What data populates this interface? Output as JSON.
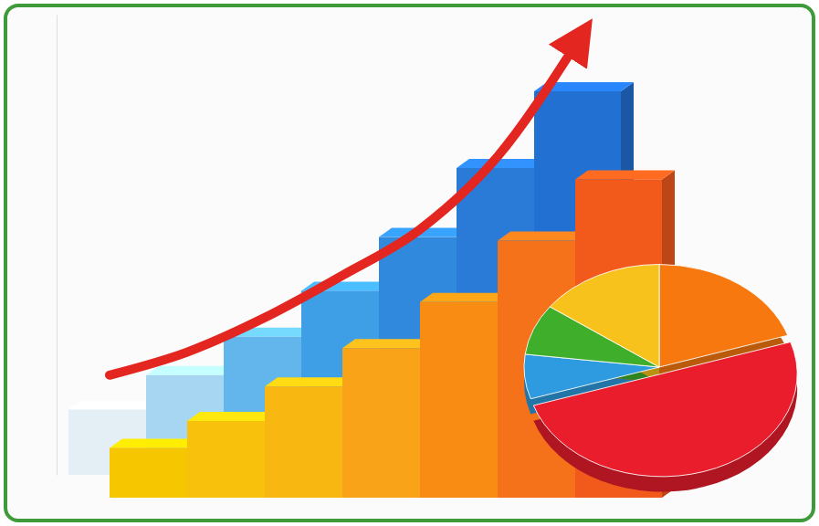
{
  "chart_data": [
    {
      "type": "bar",
      "categories": [
        null,
        null,
        null,
        null,
        null,
        null,
        null
      ],
      "ylim": [
        0,
        12
      ],
      "tick_labels": false,
      "series": [
        {
          "type": "bar",
          "colors": [
            "#e4eef5",
            "#a6d6f2",
            "#63b6ec",
            "#3f9fe6",
            "#3089dc",
            "#2a7bd7",
            "#2270d2"
          ],
          "values": [
            1.7,
            2.6,
            3.6,
            4.8,
            6.2,
            8,
            10
          ]
        },
        {
          "type": "bar",
          "colors": [
            "#f6c700",
            "#f8c20c",
            "#f9b711",
            "#f9a318",
            "#f98c12",
            "#f5721a",
            "#f25a1c"
          ],
          "values": [
            1.3,
            2,
            2.9,
            3.9,
            5.1,
            6.7,
            8.3
          ]
        },
        {
          "type": "line",
          "color": "#e3261f",
          "marker": "arrow",
          "values": [
            2.6,
            3.2,
            4.1,
            5.2,
            6.4,
            8.3,
            11.2
          ]
        }
      ]
    },
    {
      "type": "pie",
      "values": [
        20,
        50,
        7,
        8,
        15
      ],
      "colors": [
        "#f7780f",
        "#ea1d2c",
        "#2e9be0",
        "#3fae2a",
        "#f6c21b"
      ]
    }
  ]
}
